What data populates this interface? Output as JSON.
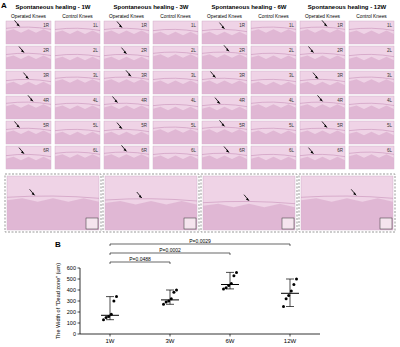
{
  "panel_labels": [
    "A",
    "B"
  ],
  "panel_a": {
    "groups": [
      {
        "title": "Spontaneous healing - 1W",
        "operated": "Operated Knees",
        "control": "Control Knees",
        "operated_labels": [
          "1R",
          "2R",
          "3R",
          "4R",
          "5R",
          "6R"
        ],
        "control_labels": [
          "1L",
          "2L",
          "3L",
          "4L",
          "5L",
          "6L"
        ]
      },
      {
        "title": "Spontaneous healing - 3W",
        "operated": "Operated Knees",
        "control": "Control Knees",
        "operated_labels": [
          "1R",
          "2R",
          "3R",
          "4R",
          "5R",
          "6R"
        ],
        "control_labels": [
          "1L",
          "2L",
          "3L",
          "4L",
          "5L",
          "6L"
        ]
      },
      {
        "title": "Spontaneous healing - 6W",
        "operated": "Operated Knees",
        "control": "Control Knees",
        "operated_labels": [
          "1R",
          "2R",
          "3R",
          "4R",
          "5R",
          "6R"
        ],
        "control_labels": [
          "1L",
          "2L",
          "3L",
          "4L",
          "5L",
          "6L"
        ]
      },
      {
        "title": "Spontaneous healing - 12W",
        "operated": "Operated Knees",
        "control": "Control Knees",
        "operated_labels": [
          "1R",
          "2R",
          "3R",
          "4R",
          "5R",
          "6R"
        ],
        "control_labels": [
          "1L",
          "2L",
          "3L",
          "4L",
          "5L",
          "6L"
        ]
      }
    ]
  },
  "chart_data": {
    "type": "scatter",
    "y_label": "The Width of \"Dead zone\" (um)",
    "categories": [
      "1W",
      "3W",
      "6W",
      "12W"
    ],
    "values": [
      [
        130,
        150,
        160,
        180,
        300,
        340
      ],
      [
        270,
        290,
        300,
        320,
        380,
        400
      ],
      [
        410,
        420,
        440,
        460,
        530,
        560
      ],
      [
        250,
        320,
        350,
        390,
        450,
        500
      ]
    ],
    "median": [
      170,
      310,
      450,
      370
    ],
    "whiskers": [
      [
        130,
        340
      ],
      [
        270,
        400
      ],
      [
        410,
        560
      ],
      [
        250,
        500
      ]
    ],
    "comparisons": [
      {
        "groups": [
          0,
          1
        ],
        "label": "P=0.0488"
      },
      {
        "groups": [
          0,
          2
        ],
        "label": "P=0.0002"
      },
      {
        "groups": [
          0,
          3
        ],
        "label": "P=0.0029"
      }
    ],
    "color": "#000000",
    "ylim": [
      0,
      600
    ],
    "yticks": [
      0,
      100,
      200,
      300,
      400,
      500,
      600
    ],
    "grid": false
  }
}
